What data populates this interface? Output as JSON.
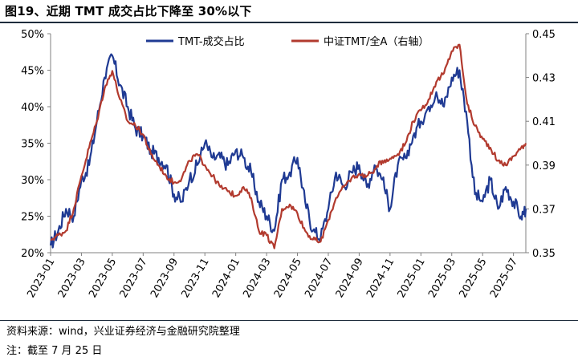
{
  "title": "图19、近期 TMT 成交占比下降至 30%以下",
  "source": "资料来源：wind，兴业证券经济与金融研究院整理",
  "note": "注：截至 7 月 25 日",
  "colors": {
    "left_series": "#1f3a93",
    "right_series": "#b23a2e",
    "axis": "#808080"
  },
  "chart_data": {
    "type": "line",
    "x_tick_labels": [
      "2023-01",
      "2023-03",
      "2023-05",
      "2023-07",
      "2023-09",
      "2023-11",
      "2024-01",
      "2024-03",
      "2024-05",
      "2024-07",
      "2024-09",
      "2024-11",
      "2025-01",
      "2025-03",
      "2025-05",
      "2025-07"
    ],
    "x_range": [
      "2023-01",
      "2025-07-25"
    ],
    "y_left": {
      "range": [
        20,
        50
      ],
      "tick_labels": [
        "50%",
        "45%",
        "40%",
        "35%",
        "30%",
        "25%",
        "20%"
      ],
      "tick_values": [
        50,
        45,
        40,
        35,
        30,
        25,
        20
      ]
    },
    "y_right": {
      "range": [
        0.35,
        0.45
      ],
      "tick_labels": [
        "0.45",
        "0.43",
        "0.41",
        "0.39",
        "0.37",
        "0.35"
      ],
      "tick_values": [
        0.45,
        0.43,
        0.41,
        0.39,
        0.37,
        0.35
      ]
    },
    "legend_placement": "top",
    "grid": false,
    "series": [
      {
        "name": "TMT-成交占比",
        "axis": "left",
        "color": "#1f3a93",
        "months": [
          0,
          0.5,
          1,
          1.5,
          2,
          2.5,
          3,
          3.5,
          4,
          4.5,
          5,
          5.5,
          6,
          6.5,
          7,
          7.5,
          8,
          8.5,
          9,
          9.5,
          10,
          10.5,
          11,
          11.5,
          12,
          12.5,
          13,
          13.5,
          14,
          14.5,
          15,
          15.5,
          16,
          16.5,
          17,
          17.5,
          18,
          18.5,
          19,
          19.5,
          20,
          20.5,
          21,
          21.5,
          22,
          22.5,
          23,
          23.5,
          24,
          24.5,
          25,
          25.5,
          26,
          26.5,
          27,
          27.5,
          28,
          28.5,
          29,
          29.5,
          30,
          30.5,
          30.8
        ],
        "values": [
          21,
          23,
          26,
          25,
          30,
          32,
          38,
          44,
          47,
          43,
          40,
          37,
          36,
          34,
          33,
          32,
          28,
          27,
          30,
          32,
          35,
          33,
          33,
          32,
          34,
          33,
          31,
          27,
          25,
          23,
          30,
          31,
          33,
          27,
          23,
          22,
          26,
          31,
          29,
          31,
          32,
          29,
          32,
          30,
          26,
          32,
          33,
          36,
          38,
          40,
          42,
          40,
          44,
          45,
          38,
          28,
          27,
          30,
          26,
          29,
          27,
          25,
          26
        ]
      },
      {
        "name": "中证TMT/全A（右轴）",
        "axis": "right",
        "color": "#b23a2e",
        "months": [
          0,
          0.5,
          1,
          1.5,
          2,
          2.5,
          3,
          3.5,
          4,
          4.5,
          5,
          5.5,
          6,
          6.5,
          7,
          7.5,
          8,
          8.5,
          9,
          9.5,
          10,
          10.5,
          11,
          11.5,
          12,
          12.5,
          13,
          13.5,
          14,
          14.5,
          15,
          15.5,
          16,
          16.5,
          17,
          17.5,
          18,
          18.5,
          19,
          19.5,
          20,
          20.5,
          21,
          21.5,
          22,
          22.5,
          23,
          23.5,
          24,
          24.5,
          25,
          25.5,
          26,
          26.5,
          27,
          27.5,
          28,
          28.5,
          29,
          29.5,
          30,
          30.5,
          30.8
        ],
        "values": [
          0.356,
          0.358,
          0.36,
          0.37,
          0.385,
          0.398,
          0.41,
          0.425,
          0.433,
          0.42,
          0.41,
          0.408,
          0.404,
          0.395,
          0.39,
          0.385,
          0.382,
          0.384,
          0.392,
          0.395,
          0.39,
          0.385,
          0.38,
          0.378,
          0.376,
          0.38,
          0.375,
          0.36,
          0.358,
          0.352,
          0.37,
          0.372,
          0.368,
          0.36,
          0.356,
          0.355,
          0.365,
          0.375,
          0.38,
          0.384,
          0.386,
          0.385,
          0.388,
          0.392,
          0.393,
          0.395,
          0.4,
          0.41,
          0.415,
          0.42,
          0.428,
          0.432,
          0.442,
          0.445,
          0.418,
          0.408,
          0.402,
          0.398,
          0.392,
          0.39,
          0.394,
          0.398,
          0.4
        ]
      }
    ]
  }
}
